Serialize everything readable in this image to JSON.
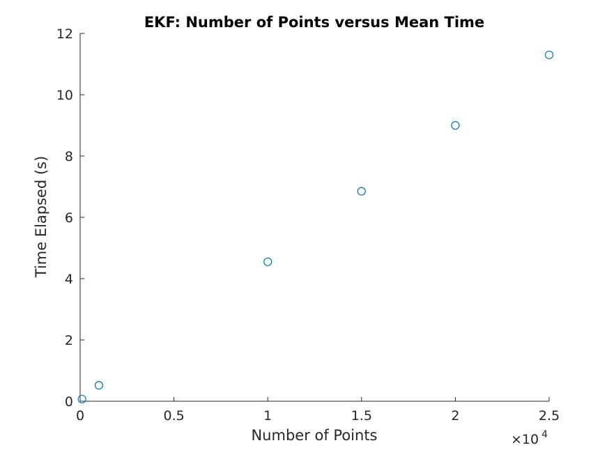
{
  "chart_data": {
    "type": "scatter",
    "title": "EKF: Number of Points versus Mean Time",
    "xlabel": "Number of Points",
    "ylabel": "Time Elapsed (s)",
    "xlim": [
      0,
      25000
    ],
    "ylim": [
      0,
      12
    ],
    "x_exponent_label": {
      "base": "×10",
      "power": "4"
    },
    "xticks": [
      0,
      5000,
      10000,
      15000,
      20000,
      25000
    ],
    "xtick_labels": [
      "0",
      "0.5",
      "1",
      "1.5",
      "2",
      "2.5"
    ],
    "yticks": [
      0,
      2,
      4,
      6,
      8,
      10,
      12
    ],
    "ytick_labels": [
      "0",
      "2",
      "4",
      "6",
      "8",
      "10",
      "12"
    ],
    "grid": false,
    "series": [
      {
        "marker": "circle",
        "color": "#0072bd",
        "x": [
          100,
          1000,
          10000,
          15000,
          20000,
          25000
        ],
        "y": [
          0.07,
          0.52,
          4.55,
          6.85,
          9.0,
          11.3
        ]
      }
    ]
  }
}
